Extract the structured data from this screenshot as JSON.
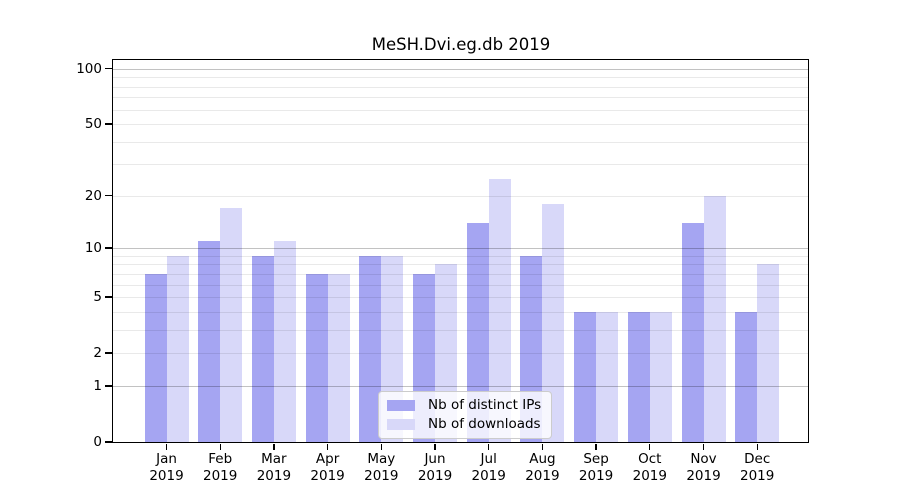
{
  "title": "MeSH.Dvi.eg.db 2019",
  "chart_data": {
    "type": "bar",
    "title": "MeSH.Dvi.eg.db 2019",
    "yscale": "log1p",
    "categories": [
      "Jan",
      "Feb",
      "Mar",
      "Apr",
      "May",
      "Jun",
      "Jul",
      "Aug",
      "Sep",
      "Oct",
      "Nov",
      "Dec"
    ],
    "year": "2019",
    "series": [
      {
        "name": "Nb of distinct IPs",
        "color": "#a5a5f2",
        "values": [
          7,
          11,
          9,
          7,
          9,
          7,
          14,
          9,
          4,
          4,
          14,
          4
        ]
      },
      {
        "name": "Nb of downloads",
        "color": "#d8d8f9",
        "values": [
          9,
          17,
          11,
          7,
          9,
          8,
          25,
          18,
          4,
          4,
          20,
          8
        ]
      }
    ],
    "yticks": [
      0,
      1,
      2,
      5,
      10,
      20,
      50,
      100
    ],
    "major_gridlines": [
      1,
      10,
      100
    ],
    "minor_gridlines": [
      2,
      3,
      4,
      5,
      6,
      7,
      8,
      9,
      20,
      30,
      40,
      50,
      60,
      70,
      80,
      90
    ],
    "ylim": [
      0,
      113
    ],
    "grid": true,
    "legend_position": "lower-center",
    "xlabel": "",
    "ylabel": ""
  },
  "colors": {
    "distinct_ips_bar": "#a5a5f2",
    "downloads_bar": "#d8d8f9",
    "axis": "#000000",
    "major_grid": "#c2c2c2",
    "minor_grid": "#eaeaea",
    "legend_border": "#cccccc"
  }
}
